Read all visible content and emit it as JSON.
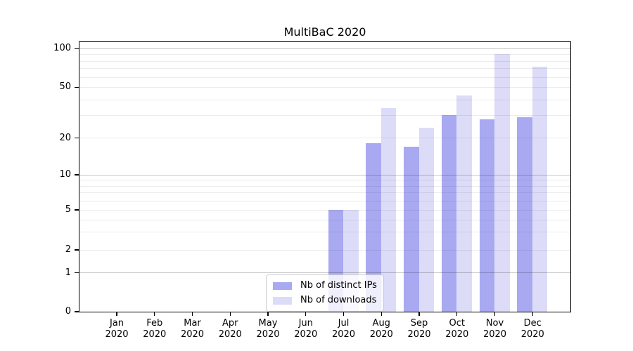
{
  "chart_data": {
    "type": "bar",
    "title": "MultiBaC 2020",
    "categories": [
      "Jan",
      "Feb",
      "Mar",
      "Apr",
      "May",
      "Jun",
      "Jul",
      "Aug",
      "Sep",
      "Oct",
      "Nov",
      "Dec"
    ],
    "category_year": "2020",
    "series": [
      {
        "name": "Nb of distinct IPs",
        "color": "#a9a9f2",
        "values": [
          0,
          0,
          0,
          0,
          0,
          0,
          5,
          18,
          17,
          30,
          28,
          29
        ]
      },
      {
        "name": "Nb of downloads",
        "color": "#dcdcf9",
        "values": [
          0,
          0,
          0,
          0,
          0,
          0,
          5,
          34,
          24,
          43,
          90,
          72
        ]
      }
    ],
    "y_axis": {
      "scale": "symlog",
      "major_ticks": [
        0,
        1,
        2,
        5,
        10,
        20,
        50,
        100
      ],
      "strong_gridlines": [
        1,
        10,
        100
      ],
      "minor_gridlines": [
        3,
        4,
        6,
        7,
        8,
        9,
        30,
        40,
        60,
        70,
        80,
        90
      ],
      "ylim": [
        0,
        110
      ]
    },
    "xlabel": "",
    "ylabel": "",
    "grid": "both",
    "legend_position": "lower center"
  }
}
